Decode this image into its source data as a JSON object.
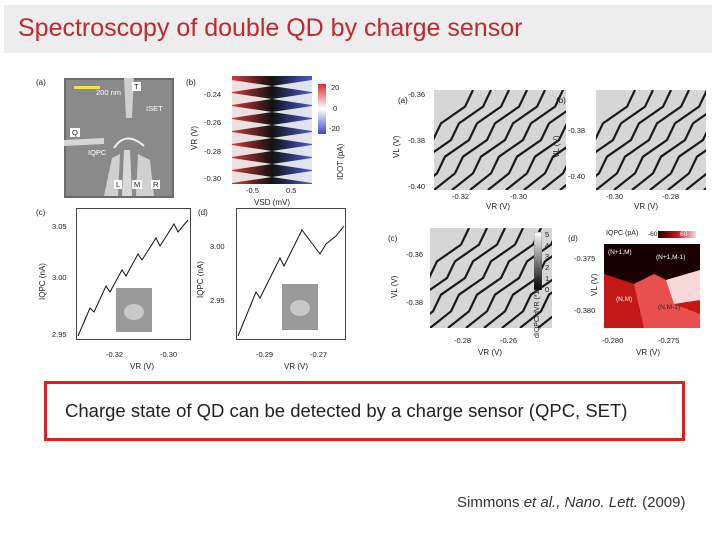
{
  "slide": {
    "title": "Spectroscopy of double QD by charge sensor",
    "callout": "Charge state of QD can be detected by a charge sensor (QPC, SET)",
    "citation": {
      "authors": "Simmons ",
      "et_al": "et al., ",
      "journal": "Nano. Lett.",
      "year": " (2009)"
    }
  },
  "left_figure": {
    "panel_a": {
      "letter": "(a)",
      "scale_bar": "200 nm",
      "labels": {
        "T": "T",
        "Q": "Q",
        "L": "L",
        "M": "M",
        "R": "R",
        "iset": "ISET",
        "iqpc": "IQPC"
      }
    },
    "panel_b": {
      "letter": "(b)",
      "yticks": [
        "-0.24",
        "-0.26",
        "-0.28",
        "-0.30"
      ],
      "xticks": [
        "-0.5",
        "0.5"
      ],
      "ylabel": "VR (V)",
      "xlabel": "VSD (mV)",
      "colorbar_ticks": [
        "20",
        "0",
        "-20"
      ],
      "colorbar_label": "IDOT (pA)"
    },
    "panel_c": {
      "letter": "(c)",
      "ylabel_units": "IQPC (nA)",
      "yticks": [
        "3.05",
        "3.00",
        "2.95"
      ],
      "xticks": [
        "-0.32",
        "-0.30"
      ],
      "xlabel": "VR (V)"
    },
    "panel_d": {
      "letter": "(d)",
      "ylabel_units": "IQPC (nA)",
      "yticks": [
        "3.00",
        "2.95"
      ],
      "xticks": [
        "-0.29",
        "-0.27"
      ],
      "xlabel": "VR (V)"
    }
  },
  "right_figure": {
    "panel_a": {
      "letter": "(a)",
      "yticks": [
        "-0.36",
        "-0.38",
        "-0.40"
      ],
      "xticks": [
        "-0.32",
        "-0.30"
      ],
      "ylabel": "VL (V)",
      "xlabel": "VR (V)"
    },
    "panel_b": {
      "letter": "(b)",
      "yticks": [
        "-0.38",
        "-0.40"
      ],
      "xticks": [
        "-0.30",
        "-0.28"
      ],
      "ylabel": "VL (V)",
      "xlabel": "VR (V)"
    },
    "panel_c": {
      "letter": "(c)",
      "yticks": [
        "-0.36",
        "-0.38"
      ],
      "xticks": [
        "-0.28",
        "-0.26"
      ],
      "ylabel": "VL (V)",
      "xlabel": "VR (V)",
      "colorbar_ticks": [
        "5",
        "4",
        "3",
        "2",
        "1",
        "0"
      ],
      "colorbar_label": "dIQPC/dVR (*1E-3)"
    },
    "panel_d": {
      "letter": "(d)",
      "yticks": [
        "-0.375",
        "-0.380"
      ],
      "xticks": [
        "-0.280",
        "-0.275"
      ],
      "ylabel": "VL (V)",
      "xlabel": "VR (V)",
      "colorbar_label": "IQPC (pA)",
      "colorbar_ticks": [
        "-60",
        "60"
      ],
      "regions": [
        "(N+1,M)",
        "(N+1,M-1)",
        "(N,M)",
        "(N,M-1)"
      ]
    }
  }
}
